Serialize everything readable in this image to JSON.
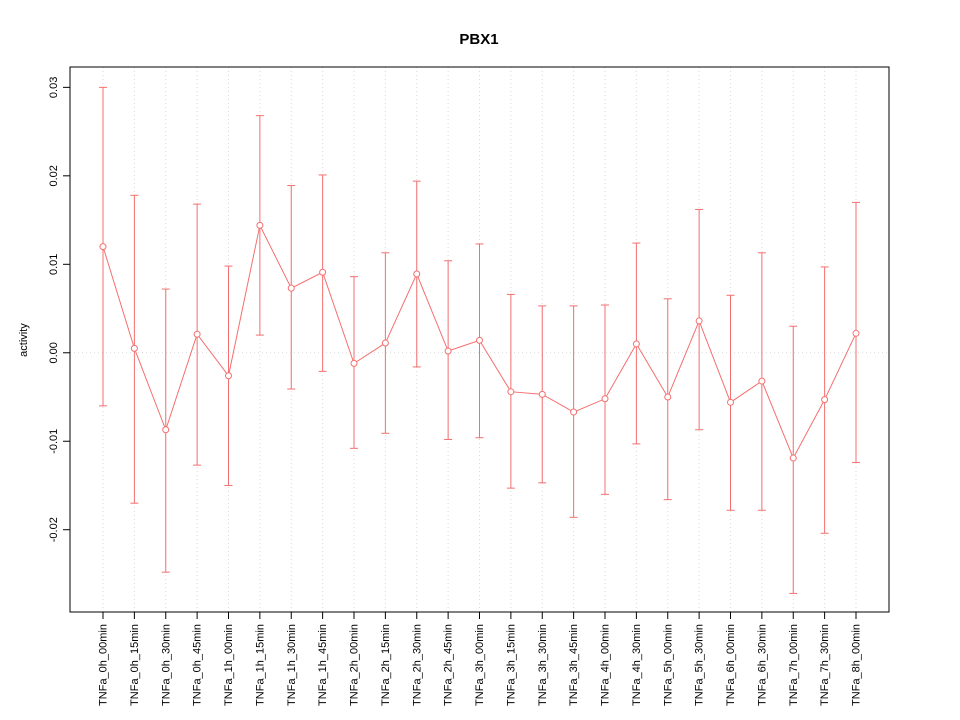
{
  "chart_data": {
    "type": "line",
    "title": "PBX1",
    "xlabel": "",
    "ylabel": "activity",
    "legend_position": "none",
    "grid": "vertical dotted gridlines at each category, dotted zero line",
    "series_color": "#f46f6f",
    "grid_color": "#dadada",
    "ylim": [
      -0.0293,
      0.0323
    ],
    "ytick_labels": [
      "-0.02",
      "-0.01",
      "0.00",
      "0.01",
      "0.02",
      "0.03"
    ],
    "categories": [
      "TNFa_0h_00min",
      "TNFa_0h_15min",
      "TNFa_0h_30min",
      "TNFa_0h_45min",
      "TNFa_1h_00min",
      "TNFa_1h_15min",
      "TNFa_1h_30min",
      "TNFa_1h_45min",
      "TNFa_2h_00min",
      "TNFa_2h_15min",
      "TNFa_2h_30min",
      "TNFa_2h_45min",
      "TNFa_3h_00min",
      "TNFa_3h_15min",
      "TNFa_3h_30min",
      "TNFa_3h_45min",
      "TNFa_4h_00min",
      "TNFa_4h_30min",
      "TNFa_5h_00min",
      "TNFa_5h_30min",
      "TNFa_6h_00min",
      "TNFa_6h_30min",
      "TNFa_7h_00min",
      "TNFa_7h_30min",
      "TNFa_8h_00min"
    ],
    "values": [
      0.012,
      0.0005,
      -0.0087,
      0.0021,
      -0.0026,
      0.0144,
      0.0073,
      0.0091,
      -0.0012,
      0.0011,
      0.0089,
      0.0002,
      0.0014,
      -0.0044,
      -0.0047,
      -0.0067,
      -0.0052,
      0.001,
      -0.005,
      0.0036,
      -0.0056,
      -0.0032,
      -0.0119,
      -0.0053,
      0.0022
    ],
    "upper": [
      0.03,
      0.0178,
      0.0072,
      0.0168,
      0.0098,
      0.0268,
      0.0189,
      0.0201,
      0.0086,
      0.0113,
      0.0194,
      0.0104,
      0.0123,
      0.0066,
      0.0053,
      0.0053,
      0.0054,
      0.0124,
      0.0061,
      0.0162,
      0.0065,
      0.0113,
      0.003,
      0.0097,
      0.017
    ],
    "lower": [
      -0.006,
      -0.017,
      -0.0248,
      -0.0127,
      -0.015,
      0.002,
      -0.0041,
      -0.0021,
      -0.0108,
      -0.0091,
      -0.0016,
      -0.0098,
      -0.0096,
      -0.0153,
      -0.0147,
      -0.0186,
      -0.016,
      -0.0103,
      -0.0166,
      -0.0087,
      -0.0178,
      -0.0178,
      -0.0272,
      -0.0204,
      -0.0124
    ]
  }
}
